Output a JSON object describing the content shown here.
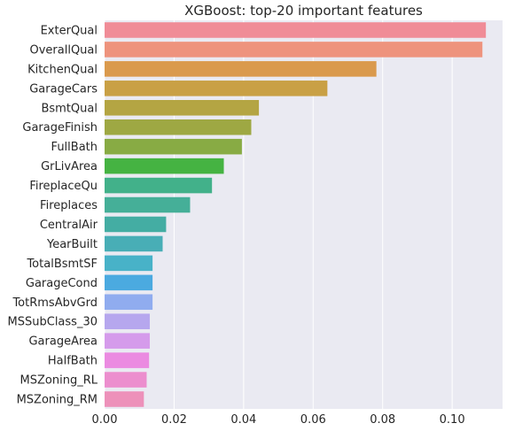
{
  "chart_data": {
    "type": "bar",
    "orientation": "horizontal",
    "title": "XGBoost: top-20 important features",
    "xlabel": "",
    "ylabel": "",
    "xlim": [
      0,
      0.1145
    ],
    "x_ticks": [
      "0.00",
      "0.02",
      "0.04",
      "0.06",
      "0.08",
      "0.10"
    ],
    "grid": true,
    "categories": [
      "ExterQual",
      "OverallQual",
      "KitchenQual",
      "GarageCars",
      "BsmtQual",
      "GarageFinish",
      "FullBath",
      "GrLivArea",
      "FireplaceQu",
      "Fireplaces",
      "CentralAir",
      "YearBuilt",
      "TotalBsmtSF",
      "GarageCond",
      "TotRmsAbvGrd",
      "MSSubClass_30",
      "GarageArea",
      "HalfBath",
      "MSZoning_RL",
      "MSZoning_RM"
    ],
    "values": [
      0.1097,
      0.1087,
      0.0782,
      0.0641,
      0.0444,
      0.0422,
      0.0395,
      0.0343,
      0.0309,
      0.0246,
      0.0177,
      0.0167,
      0.0138,
      0.0138,
      0.0138,
      0.013,
      0.013,
      0.0128,
      0.0121,
      0.0113
    ],
    "colors": [
      "#F08C97",
      "#EE937D",
      "#DA9A4D",
      "#C9A045",
      "#B4A543",
      "#9EA843",
      "#88AB44",
      "#45B342",
      "#42B18A",
      "#45AF98",
      "#44ADA3",
      "#48AEB6",
      "#48B2C8",
      "#4BAAE0",
      "#90ACEF",
      "#B6A7EE",
      "#D59BEB",
      "#EB8BE1",
      "#EC8ECE",
      "#ED91BA"
    ]
  }
}
